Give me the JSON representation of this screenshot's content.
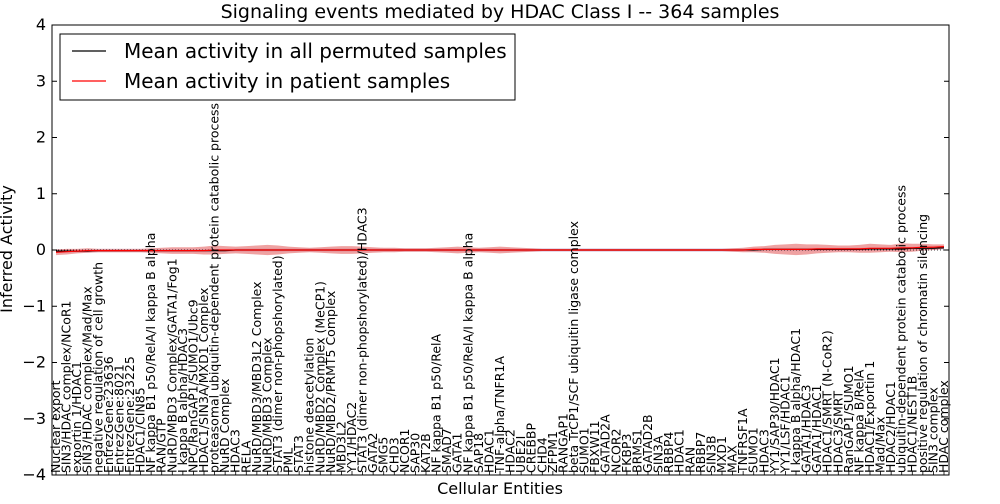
{
  "chart_data": {
    "type": "line",
    "title": "Signaling events mediated by HDAC Class I -- 364 samples",
    "xlabel": "Cellular Entities",
    "ylabel": "Inferred Activity",
    "ylim": [
      -4,
      4
    ],
    "yticks": [
      "4",
      "3",
      "2",
      "1",
      "0",
      "−1",
      "−2",
      "−3",
      "−4"
    ],
    "ytick_values": [
      4,
      3,
      2,
      1,
      0,
      -1,
      -2,
      -3,
      -4
    ],
    "legend": {
      "placement": "top-left",
      "entries": [
        "Mean activity in all permuted samples",
        "Mean activity in patient samples"
      ]
    },
    "colors": {
      "permuted": "#000000",
      "patient": "#ff0000",
      "patient_band": "#e87a7a",
      "permuted_band": "#b3b3e6",
      "zero_line": "#000000"
    },
    "entities": [
      "Nuclear export",
      "SIN3/HDAC complex/NCoR1",
      "exportin 1/HDAC1",
      "SIN3/HDAC complex/Mad/Max",
      "negative regulation of cell growth",
      "EntrezGene:23636",
      "EntrezGene:8021",
      "EntrezGene:23225",
      "HDAC1/CIN85",
      "NF kappa B1 p50/RelA/I kappa B alpha",
      "RAN/GTP",
      "NuRD/MBD3 Complex/GATA1/Fog1",
      "I kappa B alpha/HDAC3",
      "NPC/RanGAP1/SUMO1/Ubc9",
      "HDAC1/SIN3A/MXD1 Complex",
      "proteasomal ubiquitin-dependent protein catabolic process",
      "NuRD Complex",
      "HDAC3",
      "RELA",
      "NuRD/MBD3/MBD3L2 Complex",
      "NuRD/MBD3 Complex",
      "STAT3 (dimer non-phopshorylated)",
      "PML",
      "STAT3",
      "histone deacetylation",
      "NuRD/MBD2 Complex (MeCP1)",
      "NuRD/MBD2/PRMT5 Complex",
      "MBD3L2",
      "YY1/HDAC2",
      "STAT3 (dimer non-phopshorylated)/HDAC3",
      "GATA2",
      "SMG5",
      "CHD3",
      "NCOR1",
      "SAP30",
      "KAT2B",
      "NF kappa B1 p50/RelA",
      "SMAD7",
      "GATA1",
      "NF kappa B1 p50/RelA/I kappa B alpha",
      "SAP18",
      "HDAC1",
      "TNF-alpha/TNFR1A",
      "HDAC2",
      "UBE2I",
      "CREBBP",
      "CHD4",
      "ZFPM1",
      "RANGAP1",
      "beta TrCP1/SCF ubiquitin ligase complex",
      "SUMO1",
      "FBXW11",
      "GATAD2A",
      "NCOR2",
      "FKBP3",
      "BRMS1",
      "GATAD2B",
      "SIN3A",
      "RBBP4",
      "HDAC1",
      "RAN",
      "RBBP7",
      "SIN3B",
      "MXD1",
      "MAX",
      "TNFRSF1A",
      "SUMO1",
      "HDAC3",
      "YY1/SAP30/HDAC1",
      "YY1/LSF/HDAC1",
      "I kappa B alpha/HDAC1",
      "GATA1/HDAC3",
      "GATA1/HDAC1",
      "HDAC1/SMRT (N-CoR2)",
      "HDAC3/SMRT",
      "RanGAP1/SUMO1",
      "NF kappa B/RelA",
      "HDAC1/Exportin 1",
      "Mad/Max",
      "HDAC2/HDAC1",
      "ubiquitin-dependent protein catabolic process",
      "HDAC1/NEST1B",
      "positive regulation of chromatin silencing",
      "SIN3 complex",
      "HDAC complex"
    ],
    "mean_permuted": [
      -0.02,
      -0.02,
      -0.02,
      -0.02,
      -0.01,
      -0.01,
      -0.01,
      -0.01,
      -0.01,
      -0.01,
      -0.01,
      -0.01,
      -0.01,
      -0.01,
      -0.01,
      -0.01,
      -0.01,
      0.0,
      0.0,
      0.0,
      0.0,
      0.0,
      0.0,
      0.0,
      0.0,
      0.0,
      0.0,
      0.0,
      0.0,
      0.0,
      0.0,
      0.0,
      0.0,
      0.0,
      0.0,
      0.0,
      0.0,
      0.0,
      0.0,
      0.0,
      0.0,
      0.0,
      0.0,
      0.0,
      0.0,
      0.0,
      0.0,
      0.0,
      0.0,
      0.0,
      0.0,
      0.0,
      0.0,
      0.0,
      0.0,
      0.0,
      0.0,
      0.0,
      0.0,
      0.0,
      0.0,
      0.0,
      0.0,
      0.0,
      0.0,
      0.0,
      0.0,
      0.01,
      0.01,
      0.01,
      0.01,
      0.01,
      0.01,
      0.01,
      0.01,
      0.01,
      0.01,
      0.02,
      0.02,
      0.02,
      0.02,
      0.03,
      0.03,
      0.03,
      0.04
    ],
    "mean_patient": [
      -0.04,
      -0.03,
      -0.02,
      -0.01,
      -0.01,
      -0.01,
      -0.01,
      -0.01,
      -0.01,
      -0.01,
      -0.01,
      -0.01,
      -0.01,
      -0.01,
      -0.01,
      0.0,
      0.0,
      0.0,
      0.0,
      0.0,
      0.0,
      0.0,
      0.0,
      0.0,
      0.0,
      0.0,
      0.0,
      0.0,
      0.0,
      0.0,
      0.0,
      0.0,
      0.0,
      0.0,
      0.0,
      0.0,
      0.0,
      0.0,
      0.0,
      0.0,
      0.0,
      0.0,
      0.0,
      0.0,
      0.0,
      0.0,
      0.0,
      0.0,
      0.0,
      0.0,
      0.0,
      0.0,
      0.0,
      0.0,
      0.0,
      0.0,
      0.0,
      0.0,
      0.0,
      0.0,
      0.0,
      0.0,
      0.0,
      0.0,
      0.0,
      0.0,
      0.01,
      0.01,
      0.01,
      0.01,
      0.01,
      0.01,
      0.02,
      0.02,
      0.02,
      0.02,
      0.02,
      0.03,
      0.03,
      0.03,
      0.04,
      0.04,
      0.05,
      0.05,
      0.06
    ],
    "patient_spread": [
      0.05,
      0.05,
      0.04,
      0.04,
      0.03,
      0.03,
      0.03,
      0.03,
      0.03,
      0.04,
      0.05,
      0.06,
      0.06,
      0.06,
      0.07,
      0.08,
      0.07,
      0.06,
      0.07,
      0.08,
      0.09,
      0.08,
      0.06,
      0.05,
      0.04,
      0.05,
      0.06,
      0.07,
      0.07,
      0.06,
      0.05,
      0.04,
      0.04,
      0.03,
      0.03,
      0.03,
      0.04,
      0.05,
      0.06,
      0.05,
      0.04,
      0.05,
      0.06,
      0.05,
      0.04,
      0.03,
      0.02,
      0.02,
      0.02,
      0.02,
      0.02,
      0.02,
      0.02,
      0.02,
      0.02,
      0.02,
      0.02,
      0.02,
      0.02,
      0.02,
      0.02,
      0.02,
      0.02,
      0.02,
      0.03,
      0.04,
      0.05,
      0.06,
      0.08,
      0.09,
      0.1,
      0.09,
      0.08,
      0.07,
      0.06,
      0.06,
      0.07,
      0.08,
      0.07,
      0.06,
      0.08,
      0.07,
      0.06,
      0.05,
      0.04
    ]
  }
}
